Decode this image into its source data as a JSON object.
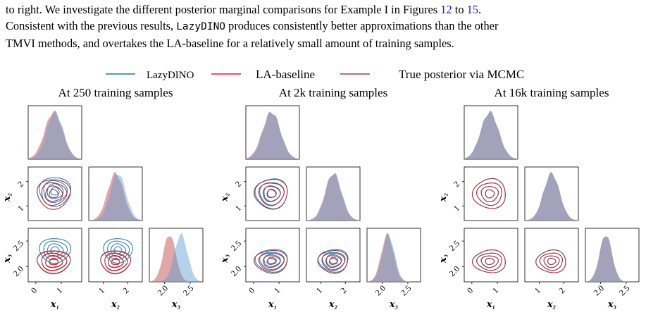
{
  "paragraph": {
    "line1": {
      "pre": "to right.  We investigate the different posterior marginal comparisons for Example I in Figures ",
      "ref1": "12",
      "mid": " to ",
      "ref2": "15",
      "post": "."
    },
    "line2": {
      "pre": "Consistent with the previous results, ",
      "code": "LazyDINO",
      "post": " produces consistently better approximations than the other"
    },
    "line3": "TMVI methods, and overtakes the LA-baseline for a relatively small amount of training samples."
  },
  "legend": {
    "placement": "top-center",
    "entries": [
      {
        "label": "LazyDINO",
        "color": "#1f77b4",
        "monospace": true
      },
      {
        "label": "LA-baseline",
        "color": "#d62728",
        "monospace": false
      },
      {
        "label": "True posterior via MCMC",
        "color": "#a04050",
        "monospace": false
      }
    ]
  },
  "chart_data": [
    {
      "type": "corner",
      "title": "At 250 training samples",
      "variables": [
        "x1",
        "x2",
        "x3"
      ],
      "axis_labels": {
        "x1": "𝒙₁",
        "x2": "𝒙₂",
        "x3": "𝒙₃"
      },
      "ticks": {
        "x1": [
          "0",
          "1"
        ],
        "x2": [
          "1",
          "2"
        ],
        "x3": [
          "2.0",
          "2.5"
        ],
        "y_row2": [
          "1",
          "2"
        ],
        "y_row3": [
          "2.0",
          "2.5"
        ]
      },
      "ranges": {
        "x1": [
          -0.3,
          1.8
        ],
        "x2": [
          0.4,
          2.6
        ],
        "x3": [
          1.7,
          2.75
        ]
      },
      "series": {
        "LazyDINO": {
          "mean": [
            0.75,
            1.6,
            2.32
          ],
          "sd": [
            0.33,
            0.32,
            0.13
          ]
        },
        "LA-baseline": {
          "mean": [
            0.7,
            1.5,
            2.09
          ],
          "sd": [
            0.35,
            0.33,
            0.12
          ]
        },
        "True posterior via MCMC": {
          "mean": [
            0.7,
            1.5,
            2.1
          ],
          "sd": [
            0.35,
            0.33,
            0.12
          ]
        }
      }
    },
    {
      "type": "corner",
      "title": "At 2k training samples",
      "variables": [
        "x1",
        "x2",
        "x3"
      ],
      "axis_labels": {
        "x1": "𝒙₁",
        "x2": "𝒙₂",
        "x3": "𝒙₃"
      },
      "ticks": {
        "x1": [
          "0",
          "1"
        ],
        "x2": [
          "1",
          "2"
        ],
        "x3": [
          "2.0",
          "2.5"
        ],
        "y_row2": [
          "1",
          "2"
        ],
        "y_row3": [
          "2.0",
          "2.5"
        ]
      },
      "ranges": {
        "x1": [
          -0.3,
          1.8
        ],
        "x2": [
          0.4,
          2.6
        ],
        "x3": [
          1.7,
          2.75
        ]
      },
      "series": {
        "LazyDINO": {
          "mean": [
            0.72,
            1.52,
            2.12
          ],
          "sd": [
            0.34,
            0.33,
            0.12
          ]
        },
        "LA-baseline": {
          "mean": [
            0.7,
            1.5,
            2.1
          ],
          "sd": [
            0.35,
            0.33,
            0.12
          ]
        },
        "True posterior via MCMC": {
          "mean": [
            0.7,
            1.5,
            2.1
          ],
          "sd": [
            0.35,
            0.33,
            0.12
          ]
        }
      }
    },
    {
      "type": "corner",
      "title": "At 16k training samples",
      "variables": [
        "x1",
        "x2",
        "x3"
      ],
      "axis_labels": {
        "x1": "𝒙₁",
        "x2": "𝒙₂",
        "x3": "𝒙₃"
      },
      "ticks": {
        "x1": [
          "0",
          "1"
        ],
        "x2": [
          "1",
          "2"
        ],
        "x3": [
          "2.0",
          "2.5"
        ],
        "y_row2": [
          "1",
          "2"
        ],
        "y_row3": [
          "2.0",
          "2.5"
        ]
      },
      "ranges": {
        "x1": [
          -0.3,
          1.8
        ],
        "x2": [
          0.4,
          2.6
        ],
        "x3": [
          1.7,
          2.75
        ]
      },
      "series": {
        "LazyDINO": {
          "mean": [
            0.7,
            1.5,
            2.1
          ],
          "sd": [
            0.35,
            0.33,
            0.12
          ]
        },
        "LA-baseline": {
          "mean": [
            0.7,
            1.5,
            2.1
          ],
          "sd": [
            0.35,
            0.33,
            0.12
          ]
        },
        "True posterior via MCMC": {
          "mean": [
            0.7,
            1.5,
            2.1
          ],
          "sd": [
            0.35,
            0.33,
            0.12
          ]
        }
      }
    }
  ]
}
